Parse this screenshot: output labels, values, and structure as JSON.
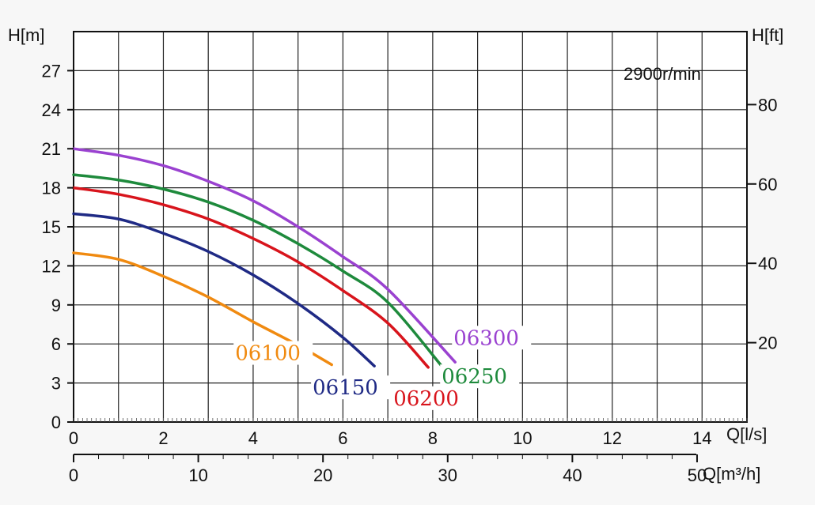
{
  "chart_data": {
    "type": "line",
    "speed_label": "2900r/min",
    "y_left": {
      "label": "H[m]",
      "min": 0,
      "max": 30,
      "ticks": [
        0,
        3,
        6,
        9,
        12,
        15,
        18,
        21,
        24,
        27
      ]
    },
    "y_right": {
      "label": "H[ft]",
      "min": 0,
      "max": 98.4,
      "ticks": [
        20,
        40,
        60,
        80
      ]
    },
    "x_ls": {
      "label": "Q[l/s]",
      "min": 0,
      "max": 15,
      "ticks": [
        0,
        2,
        4,
        6,
        8,
        10,
        12,
        14
      ]
    },
    "x_m3h": {
      "label": "Q[m³/h]",
      "min": 0,
      "max": 54,
      "ticks": [
        0,
        10,
        20,
        30,
        40,
        50
      ]
    },
    "grid": true,
    "series": [
      {
        "name": "06100",
        "color": "#f08a10",
        "q_ls": [
          0,
          1,
          2,
          3,
          4,
          5,
          5.75
        ],
        "h_m": [
          13,
          12.5,
          11.2,
          9.6,
          7.7,
          5.9,
          4.4
        ]
      },
      {
        "name": "06150",
        "color": "#1f2a85",
        "q_ls": [
          0,
          1,
          2,
          3,
          4,
          5,
          6,
          6.7
        ],
        "h_m": [
          16,
          15.6,
          14.5,
          13.1,
          11.3,
          9.1,
          6.5,
          4.3
        ]
      },
      {
        "name": "06200",
        "color": "#d8141c",
        "q_ls": [
          0,
          1,
          2,
          3,
          4,
          5,
          6,
          7,
          7.9
        ],
        "h_m": [
          18,
          17.5,
          16.7,
          15.6,
          14.1,
          12.3,
          10.1,
          7.6,
          4.2
        ]
      },
      {
        "name": "06250",
        "color": "#1e8a3c",
        "q_ls": [
          0,
          1,
          2,
          3,
          4,
          5,
          6,
          7,
          8.2
        ],
        "h_m": [
          19,
          18.6,
          17.9,
          16.9,
          15.5,
          13.7,
          11.6,
          9.2,
          4.3
        ]
      },
      {
        "name": "06300",
        "color": "#9a42d0",
        "q_ls": [
          0,
          1,
          2,
          3,
          4,
          5,
          6,
          7,
          8.5
        ],
        "h_m": [
          21,
          20.5,
          19.7,
          18.5,
          17,
          15,
          12.7,
          10.2,
          4.6
        ]
      }
    ]
  }
}
